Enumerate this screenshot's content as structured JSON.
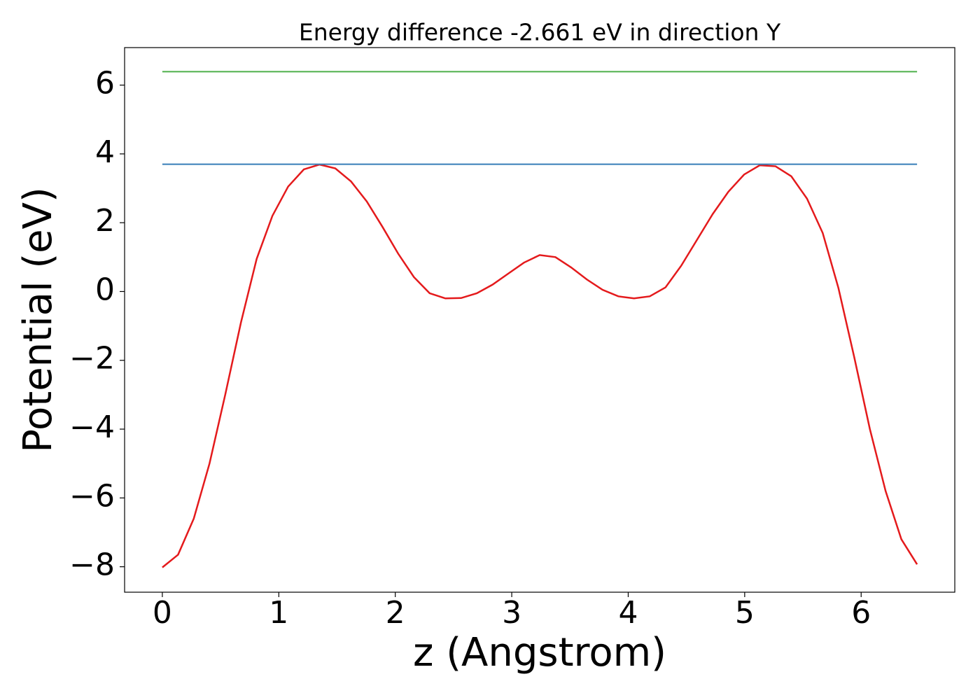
{
  "chart_data": {
    "type": "line",
    "title": "Energy difference -2.661 eV in direction Y",
    "x_label": "z (Angstrom)",
    "y_label": "Potential (eV)",
    "xlim": [
      -0.324,
      6.804
    ],
    "ylim": [
      -8.74,
      7.09
    ],
    "xticks": [
      0,
      1,
      2,
      3,
      4,
      5,
      6
    ],
    "yticks": [
      {
        "value": -8,
        "label": "−8"
      },
      {
        "value": -6,
        "label": "−6"
      },
      {
        "value": -4,
        "label": "−4"
      },
      {
        "value": -2,
        "label": "−2"
      },
      0,
      2,
      4,
      6
    ],
    "series": [
      {
        "color": "#e41a1c",
        "x": [
          0,
          0.135,
          0.27,
          0.405,
          0.54,
          0.675,
          0.81,
          0.945,
          1.08,
          1.215,
          1.35,
          1.485,
          1.62,
          1.755,
          1.89,
          2.025,
          2.16,
          2.295,
          2.43,
          2.565,
          2.7,
          2.835,
          2.97,
          3.105,
          3.24,
          3.375,
          3.51,
          3.645,
          3.78,
          3.915,
          4.05,
          4.185,
          4.32,
          4.455,
          4.59,
          4.725,
          4.86,
          4.995,
          5.13,
          5.265,
          5.4,
          5.535,
          5.67,
          5.805,
          5.94,
          6.075,
          6.21,
          6.345,
          6.48
        ],
        "values": [
          -8.02,
          -7.65,
          -6.6,
          -5.0,
          -3.0,
          -0.9,
          0.95,
          2.2,
          3.05,
          3.55,
          3.69,
          3.58,
          3.2,
          2.62,
          1.88,
          1.1,
          0.42,
          -0.05,
          -0.2,
          -0.19,
          -0.05,
          0.2,
          0.52,
          0.84,
          1.06,
          1.0,
          0.7,
          0.35,
          0.05,
          -0.14,
          -0.2,
          -0.14,
          0.12,
          0.75,
          1.5,
          2.25,
          2.9,
          3.4,
          3.67,
          3.64,
          3.35,
          2.7,
          1.7,
          0.1,
          -1.9,
          -4.0,
          -5.8,
          -7.2,
          -7.93
        ]
      },
      {
        "color": "#377eb8",
        "x": [
          0,
          6.48
        ],
        "values": [
          3.7,
          3.7
        ]
      },
      {
        "color": "#4daf4a",
        "x": [
          0,
          6.48
        ],
        "values": [
          6.39,
          6.39
        ]
      }
    ]
  }
}
